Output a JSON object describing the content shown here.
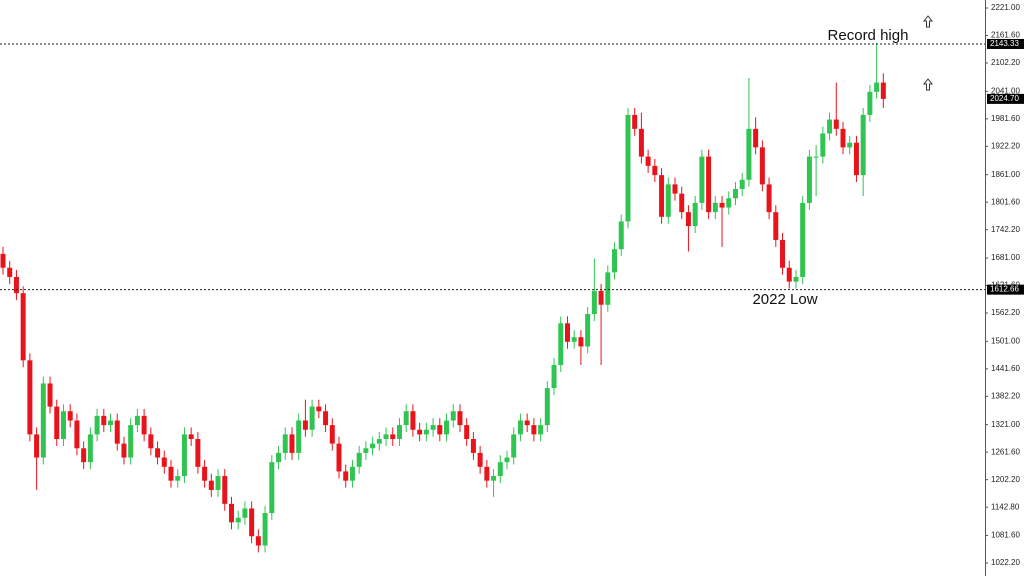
{
  "chart_data": {
    "type": "candlestick",
    "ylim": [
      994.1,
      2238.3
    ],
    "yticks": [
      {
        "value": 1022.2,
        "label": "1022.20"
      },
      {
        "value": 1081.6,
        "label": "1081.60"
      },
      {
        "value": 1142.8,
        "label": "1142.80"
      },
      {
        "value": 1202.2,
        "label": "1202.20"
      },
      {
        "value": 1261.6,
        "label": "1261.60"
      },
      {
        "value": 1321,
        "label": "1321.00"
      },
      {
        "value": 1382.2,
        "label": "1382.20"
      },
      {
        "value": 1441.6,
        "label": "1441.60"
      },
      {
        "value": 1501,
        "label": "1501.00"
      },
      {
        "value": 1562.2,
        "label": "1562.20"
      },
      {
        "value": 1621.6,
        "label": "1621.60"
      },
      {
        "value": 1681,
        "label": "1681.00"
      },
      {
        "value": 1742.2,
        "label": "1742.20"
      },
      {
        "value": 1801.6,
        "label": "1801.60"
      },
      {
        "value": 1861,
        "label": "1861.00"
      },
      {
        "value": 1922.2,
        "label": "1922.20"
      },
      {
        "value": 1981.6,
        "label": "1981.60"
      },
      {
        "value": 2041,
        "label": "2041.00"
      },
      {
        "value": 2102.2,
        "label": "2102.20"
      },
      {
        "value": 2161.6,
        "label": "2161.60"
      },
      {
        "value": 2221,
        "label": "2221.00"
      }
    ],
    "up_color": "#30c452",
    "down_color": "#e8141c",
    "price_lines": [
      {
        "value": 2143.33,
        "label": "2143.33"
      },
      {
        "value": 1612.66,
        "label": "1612.66"
      }
    ],
    "current_price": {
      "value": 2024.7,
      "label": "2024.70"
    },
    "annotations": [
      {
        "text": "Record high",
        "value": 2160
      },
      {
        "text": "2022 Low",
        "value": 1590
      }
    ],
    "ohlc": [
      [
        1690,
        1705,
        1645,
        1660
      ],
      [
        1660,
        1675,
        1625,
        1640
      ],
      [
        1640,
        1655,
        1590,
        1605
      ],
      [
        1605,
        1620,
        1445,
        1460
      ],
      [
        1460,
        1475,
        1285,
        1300
      ],
      [
        1300,
        1315,
        1180,
        1250
      ],
      [
        1250,
        1425,
        1235,
        1410
      ],
      [
        1410,
        1425,
        1345,
        1360
      ],
      [
        1360,
        1375,
        1275,
        1290
      ],
      [
        1290,
        1365,
        1275,
        1350
      ],
      [
        1350,
        1365,
        1315,
        1330
      ],
      [
        1330,
        1345,
        1255,
        1270
      ],
      [
        1270,
        1285,
        1225,
        1240
      ],
      [
        1240,
        1315,
        1225,
        1300
      ],
      [
        1300,
        1355,
        1285,
        1340
      ],
      [
        1340,
        1355,
        1305,
        1320
      ],
      [
        1320,
        1345,
        1305,
        1330
      ],
      [
        1330,
        1345,
        1265,
        1280
      ],
      [
        1280,
        1295,
        1235,
        1250
      ],
      [
        1250,
        1335,
        1235,
        1320
      ],
      [
        1320,
        1355,
        1305,
        1340
      ],
      [
        1340,
        1355,
        1285,
        1300
      ],
      [
        1300,
        1315,
        1255,
        1270
      ],
      [
        1270,
        1285,
        1235,
        1250
      ],
      [
        1250,
        1265,
        1215,
        1230
      ],
      [
        1230,
        1245,
        1185,
        1200
      ],
      [
        1200,
        1225,
        1185,
        1210
      ],
      [
        1210,
        1315,
        1195,
        1300
      ],
      [
        1300,
        1315,
        1275,
        1290
      ],
      [
        1290,
        1305,
        1215,
        1230
      ],
      [
        1230,
        1245,
        1185,
        1200
      ],
      [
        1200,
        1215,
        1165,
        1180
      ],
      [
        1180,
        1225,
        1165,
        1210
      ],
      [
        1210,
        1225,
        1135,
        1150
      ],
      [
        1150,
        1165,
        1095,
        1110
      ],
      [
        1110,
        1135,
        1095,
        1120
      ],
      [
        1120,
        1155,
        1105,
        1140
      ],
      [
        1140,
        1155,
        1065,
        1080
      ],
      [
        1080,
        1095,
        1045,
        1060
      ],
      [
        1060,
        1145,
        1045,
        1130
      ],
      [
        1130,
        1255,
        1115,
        1240
      ],
      [
        1240,
        1275,
        1225,
        1260
      ],
      [
        1260,
        1315,
        1245,
        1300
      ],
      [
        1300,
        1315,
        1245,
        1260
      ],
      [
        1260,
        1345,
        1245,
        1330
      ],
      [
        1330,
        1375,
        1295,
        1310
      ],
      [
        1310,
        1375,
        1295,
        1360
      ],
      [
        1360,
        1375,
        1335,
        1350
      ],
      [
        1350,
        1365,
        1305,
        1320
      ],
      [
        1320,
        1335,
        1265,
        1280
      ],
      [
        1280,
        1295,
        1205,
        1220
      ],
      [
        1220,
        1235,
        1185,
        1200
      ],
      [
        1200,
        1245,
        1185,
        1230
      ],
      [
        1230,
        1275,
        1215,
        1260
      ],
      [
        1260,
        1285,
        1245,
        1270
      ],
      [
        1270,
        1295,
        1255,
        1280
      ],
      [
        1280,
        1305,
        1265,
        1290
      ],
      [
        1290,
        1315,
        1275,
        1300
      ],
      [
        1300,
        1315,
        1275,
        1290
      ],
      [
        1290,
        1335,
        1275,
        1320
      ],
      [
        1320,
        1365,
        1305,
        1350
      ],
      [
        1350,
        1365,
        1295,
        1310
      ],
      [
        1310,
        1325,
        1285,
        1300
      ],
      [
        1300,
        1325,
        1285,
        1310
      ],
      [
        1310,
        1335,
        1295,
        1320
      ],
      [
        1320,
        1335,
        1285,
        1300
      ],
      [
        1300,
        1345,
        1285,
        1330
      ],
      [
        1330,
        1365,
        1315,
        1350
      ],
      [
        1350,
        1365,
        1305,
        1320
      ],
      [
        1320,
        1335,
        1275,
        1290
      ],
      [
        1290,
        1305,
        1245,
        1260
      ],
      [
        1260,
        1275,
        1215,
        1230
      ],
      [
        1230,
        1245,
        1185,
        1200
      ],
      [
        1200,
        1225,
        1165,
        1210
      ],
      [
        1210,
        1255,
        1195,
        1240
      ],
      [
        1240,
        1265,
        1225,
        1250
      ],
      [
        1250,
        1315,
        1235,
        1300
      ],
      [
        1300,
        1345,
        1285,
        1330
      ],
      [
        1330,
        1345,
        1305,
        1320
      ],
      [
        1320,
        1335,
        1285,
        1300
      ],
      [
        1300,
        1335,
        1285,
        1320
      ],
      [
        1320,
        1415,
        1305,
        1400
      ],
      [
        1400,
        1465,
        1385,
        1450
      ],
      [
        1450,
        1555,
        1435,
        1540
      ],
      [
        1540,
        1555,
        1485,
        1500
      ],
      [
        1500,
        1525,
        1485,
        1510
      ],
      [
        1510,
        1525,
        1450,
        1490
      ],
      [
        1490,
        1575,
        1475,
        1560
      ],
      [
        1560,
        1680,
        1545,
        1610
      ],
      [
        1610,
        1625,
        1450,
        1580
      ],
      [
        1580,
        1665,
        1565,
        1650
      ],
      [
        1650,
        1715,
        1635,
        1700
      ],
      [
        1700,
        1775,
        1685,
        1760
      ],
      [
        1760,
        2005,
        1745,
        1990
      ],
      [
        1990,
        2005,
        1945,
        1960
      ],
      [
        1960,
        1995,
        1885,
        1900
      ],
      [
        1900,
        1915,
        1865,
        1880
      ],
      [
        1880,
        1895,
        1845,
        1860
      ],
      [
        1860,
        1875,
        1755,
        1770
      ],
      [
        1770,
        1855,
        1755,
        1840
      ],
      [
        1840,
        1855,
        1805,
        1820
      ],
      [
        1820,
        1835,
        1765,
        1780
      ],
      [
        1780,
        1795,
        1695,
        1750
      ],
      [
        1750,
        1815,
        1735,
        1800
      ],
      [
        1800,
        1915,
        1785,
        1900
      ],
      [
        1900,
        1915,
        1765,
        1780
      ],
      [
        1780,
        1815,
        1765,
        1800
      ],
      [
        1800,
        1815,
        1705,
        1790
      ],
      [
        1790,
        1825,
        1775,
        1810
      ],
      [
        1810,
        1845,
        1795,
        1830
      ],
      [
        1830,
        1865,
        1815,
        1850
      ],
      [
        1850,
        2070,
        1835,
        1960
      ],
      [
        1960,
        1985,
        1905,
        1920
      ],
      [
        1920,
        1935,
        1825,
        1840
      ],
      [
        1840,
        1855,
        1765,
        1780
      ],
      [
        1780,
        1795,
        1705,
        1720
      ],
      [
        1720,
        1735,
        1645,
        1660
      ],
      [
        1660,
        1675,
        1615,
        1630
      ],
      [
        1630,
        1655,
        1615,
        1640
      ],
      [
        1640,
        1815,
        1625,
        1800
      ],
      [
        1800,
        1915,
        1785,
        1900
      ],
      [
        1900,
        1925,
        1815,
        1900
      ],
      [
        1900,
        1965,
        1885,
        1950
      ],
      [
        1950,
        1995,
        1935,
        1980
      ],
      [
        1980,
        2060,
        1945,
        1960
      ],
      [
        1960,
        1975,
        1905,
        1920
      ],
      [
        1920,
        1945,
        1905,
        1930
      ],
      [
        1930,
        1945,
        1845,
        1860
      ],
      [
        1860,
        2005,
        1815,
        1990
      ],
      [
        1990,
        2055,
        1975,
        2040
      ],
      [
        2040,
        2146,
        2025,
        2060
      ],
      [
        2060,
        2080,
        2005,
        2024.7
      ]
    ]
  }
}
